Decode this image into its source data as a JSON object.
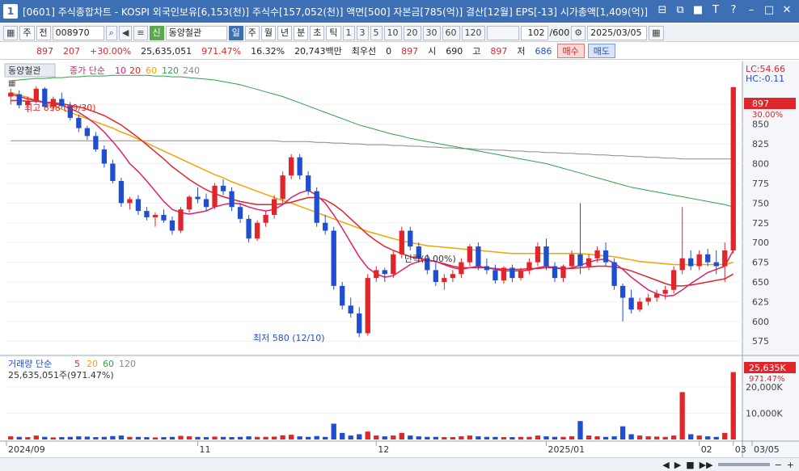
{
  "window": {
    "number": "1",
    "title": "[0601] 주식종합차트 - KOSPI 외국인보유[6,153(천)] 주식수[157,052(천)] 액면[500] 자본금[785(억)] 결산[12월] EPS[-13] 시가총액[1,409(억)]",
    "buttons": [
      "⊟",
      "⧉",
      "■",
      "T",
      "?",
      "–",
      "□",
      "✕"
    ]
  },
  "toolbar": {
    "mode": "주",
    "prev": "전",
    "code": "008970",
    "badge": "신",
    "name": "동양철관",
    "periods": [
      "일",
      "주",
      "월",
      "년",
      "분",
      "초",
      "틱"
    ],
    "intervals": [
      "1",
      "3",
      "5",
      "10",
      "20",
      "30",
      "60",
      "120"
    ],
    "count": "102",
    "total": "/600",
    "date": "2025/03/05"
  },
  "info": {
    "price": "897",
    "change": "207",
    "change_pct": "+30.00%",
    "volume": "25,635,051",
    "vol_ratio": "971.47%",
    "turnover": "16.32%",
    "amount": "20,743백만",
    "pref_label": "최우선",
    "pref_val": "0",
    "pref_price": "897",
    "open_label": "시",
    "open": "690",
    "high_label": "고",
    "high": "897",
    "low_label": "저",
    "low": "686",
    "buy": "매수",
    "sell": "매도"
  },
  "legend": {
    "stock": "동양철관",
    "ma_label": "종가 단순",
    "ma_periods": [
      "10",
      "20",
      "60",
      "120",
      "240"
    ],
    "ma_colors": [
      "#e01f6a",
      "#e0262b",
      "#f0a500",
      "#2ea24d",
      "#888888"
    ],
    "vol_label": "거래량 단순",
    "vol_periods": [
      "5",
      "20",
      "60",
      "120"
    ],
    "vol_value": "25,635,051주(971.47%)"
  },
  "annotations": {
    "high": "최고 898 (09/30)",
    "low": "최저 580 (12/10)",
    "mid": "단락(0.00%)",
    "lc": "LC:54.66",
    "hc": "HC:-0.11",
    "price_tag": "897",
    "pct_tag": "30.00%",
    "vol_tag": "25,635K",
    "vol_pct_tag": "971.47%"
  },
  "chart_data": {
    "type": "candlestick",
    "y_ticks": [
      "875",
      "850",
      "825",
      "800",
      "775",
      "750",
      "725",
      "700",
      "675",
      "650",
      "625",
      "600",
      "575"
    ],
    "vol_ticks": [
      "20,000K",
      "10,000K"
    ],
    "x_labels": [
      "2024/09",
      "11",
      "12",
      "2025/01",
      "02",
      "03",
      "03/05"
    ],
    "ylim": [
      565,
      905
    ],
    "candles": [
      [
        885,
        895,
        875,
        890
      ],
      [
        888,
        893,
        870,
        874
      ],
      [
        874,
        885,
        865,
        880
      ],
      [
        880,
        898,
        876,
        895
      ],
      [
        895,
        897,
        870,
        872
      ],
      [
        872,
        885,
        866,
        882
      ],
      [
        882,
        890,
        870,
        873
      ],
      [
        873,
        878,
        855,
        858
      ],
      [
        858,
        862,
        840,
        845
      ],
      [
        845,
        848,
        830,
        835
      ],
      [
        835,
        840,
        815,
        818
      ],
      [
        818,
        823,
        795,
        800
      ],
      [
        800,
        805,
        775,
        778
      ],
      [
        778,
        782,
        745,
        750
      ],
      [
        750,
        758,
        742,
        755
      ],
      [
        755,
        760,
        735,
        740
      ],
      [
        740,
        745,
        728,
        732
      ],
      [
        732,
        738,
        720,
        735
      ],
      [
        735,
        742,
        725,
        728
      ],
      [
        728,
        733,
        710,
        715
      ],
      [
        715,
        745,
        712,
        742
      ],
      [
        742,
        760,
        738,
        758
      ],
      [
        758,
        770,
        750,
        755
      ],
      [
        755,
        762,
        740,
        745
      ],
      [
        745,
        775,
        742,
        772
      ],
      [
        772,
        780,
        760,
        765
      ],
      [
        765,
        770,
        740,
        745
      ],
      [
        745,
        750,
        725,
        730
      ],
      [
        730,
        735,
        700,
        705
      ],
      [
        705,
        728,
        702,
        725
      ],
      [
        725,
        740,
        720,
        735
      ],
      [
        735,
        760,
        730,
        755
      ],
      [
        755,
        790,
        750,
        785
      ],
      [
        785,
        812,
        780,
        808
      ],
      [
        808,
        812,
        780,
        785
      ],
      [
        785,
        790,
        760,
        765
      ],
      [
        765,
        770,
        720,
        725
      ],
      [
        725,
        735,
        710,
        715
      ],
      [
        715,
        720,
        640,
        645
      ],
      [
        645,
        650,
        615,
        620
      ],
      [
        620,
        630,
        605,
        610
      ],
      [
        610,
        618,
        580,
        585
      ],
      [
        585,
        660,
        582,
        655
      ],
      [
        655,
        670,
        650,
        665
      ],
      [
        665,
        668,
        650,
        660
      ],
      [
        660,
        690,
        655,
        685
      ],
      [
        685,
        720,
        680,
        715
      ],
      [
        715,
        720,
        690,
        695
      ],
      [
        695,
        700,
        675,
        680
      ],
      [
        680,
        685,
        660,
        665
      ],
      [
        665,
        675,
        645,
        650
      ],
      [
        650,
        660,
        640,
        655
      ],
      [
        655,
        665,
        650,
        660
      ],
      [
        660,
        680,
        655,
        675
      ],
      [
        675,
        698,
        670,
        695
      ],
      [
        695,
        700,
        665,
        670
      ],
      [
        670,
        680,
        660,
        665
      ],
      [
        665,
        672,
        648,
        652
      ],
      [
        652,
        670,
        648,
        668
      ],
      [
        668,
        672,
        650,
        655
      ],
      [
        655,
        668,
        652,
        665
      ],
      [
        665,
        680,
        660,
        675
      ],
      [
        675,
        700,
        670,
        695
      ],
      [
        695,
        705,
        665,
        670
      ],
      [
        670,
        675,
        650,
        655
      ],
      [
        655,
        672,
        650,
        670
      ],
      [
        670,
        690,
        668,
        685
      ],
      [
        685,
        750,
        660,
        670
      ],
      [
        670,
        685,
        665,
        680
      ],
      [
        680,
        695,
        675,
        690
      ],
      [
        690,
        700,
        670,
        675
      ],
      [
        675,
        680,
        640,
        645
      ],
      [
        645,
        648,
        600,
        630
      ],
      [
        630,
        640,
        610,
        615
      ],
      [
        615,
        630,
        612,
        625
      ],
      [
        625,
        635,
        620,
        630
      ],
      [
        630,
        640,
        625,
        635
      ],
      [
        635,
        645,
        628,
        640
      ],
      [
        640,
        670,
        635,
        665
      ],
      [
        665,
        745,
        660,
        680
      ],
      [
        680,
        690,
        665,
        670
      ],
      [
        670,
        690,
        665,
        685
      ],
      [
        685,
        692,
        670,
        675
      ],
      [
        675,
        690,
        660,
        670
      ],
      [
        670,
        700,
        650,
        690
      ],
      [
        690,
        897,
        686,
        897
      ]
    ],
    "volumes": [
      1.2,
      1.0,
      0.9,
      1.5,
      1.0,
      0.8,
      0.9,
      1.0,
      1.2,
      1.1,
      0.9,
      1.0,
      1.3,
      1.5,
      1.0,
      1.0,
      0.9,
      0.8,
      0.9,
      1.0,
      1.4,
      1.2,
      1.0,
      0.9,
      1.1,
      1.0,
      0.9,
      1.0,
      1.2,
      1.0,
      1.0,
      1.1,
      1.6,
      1.8,
      1.2,
      1.0,
      1.3,
      1.0,
      6.0,
      2.5,
      1.5,
      2.0,
      3.0,
      1.5,
      1.2,
      1.5,
      2.5,
      1.5,
      1.2,
      1.0,
      1.0,
      0.9,
      0.9,
      1.2,
      1.5,
      1.2,
      1.0,
      1.0,
      0.9,
      0.9,
      1.0,
      1.0,
      1.5,
      1.2,
      1.0,
      1.0,
      1.2,
      7.0,
      1.5,
      1.2,
      1.0,
      1.2,
      5.0,
      2.0,
      1.5,
      1.2,
      1.1,
      1.0,
      1.5,
      18.0,
      2.0,
      1.5,
      1.2,
      1.0,
      2.5,
      25.6
    ],
    "ma10": [
      888,
      885,
      882,
      880,
      878,
      876,
      874,
      870,
      865,
      858,
      850,
      840,
      828,
      815,
      800,
      790,
      778,
      765,
      752,
      742,
      738,
      736,
      738,
      740,
      745,
      748,
      750,
      749,
      745,
      742,
      740,
      742,
      748,
      757,
      763,
      766,
      760,
      750,
      735,
      718,
      700,
      682,
      668,
      660,
      656,
      658,
      665,
      672,
      676,
      678,
      676,
      672,
      668,
      666,
      668,
      670,
      668,
      666,
      664,
      664,
      664,
      665,
      668,
      670,
      668,
      666,
      668,
      671,
      675,
      678,
      679,
      674,
      666,
      656,
      648,
      640,
      635,
      632,
      633,
      640,
      648,
      655,
      662,
      666,
      670,
      690
    ],
    "ma20": [
      880,
      880,
      879,
      879,
      878,
      877,
      876,
      874,
      872,
      869,
      865,
      861,
      855,
      849,
      841,
      833,
      824,
      815,
      806,
      796,
      788,
      780,
      773,
      767,
      762,
      758,
      755,
      752,
      750,
      748,
      748,
      748,
      749,
      751,
      754,
      757,
      757,
      754,
      748,
      740,
      730,
      720,
      710,
      702,
      695,
      690,
      686,
      682,
      680,
      678,
      676,
      673,
      670,
      668,
      668,
      668,
      668,
      667,
      666,
      666,
      666,
      667,
      667,
      668,
      668,
      667,
      667,
      668,
      669,
      670,
      670,
      669,
      667,
      664,
      660,
      656,
      652,
      648,
      645,
      645,
      646,
      648,
      650,
      652,
      654,
      660
    ],
    "ma60": [
      890,
      887,
      884,
      880,
      877,
      873,
      869,
      865,
      861,
      857,
      853,
      849,
      845,
      840,
      836,
      831,
      826,
      821,
      816,
      811,
      806,
      801,
      796,
      791,
      786,
      782,
      777,
      773,
      769,
      765,
      761,
      757,
      753,
      750,
      746,
      742,
      738,
      734,
      730,
      726,
      722,
      718,
      714,
      711,
      708,
      705,
      702,
      700,
      698,
      696,
      695,
      694,
      693,
      692,
      691,
      690,
      689,
      688,
      687,
      686,
      686,
      686,
      686,
      686,
      686,
      686,
      686,
      686,
      685,
      684,
      683,
      682,
      680,
      678,
      676,
      675,
      674,
      673,
      672,
      672,
      672,
      672,
      672,
      672,
      672,
      675
    ],
    "ma120": [
      905,
      906,
      907,
      908,
      908,
      909,
      909,
      910,
      910,
      911,
      911,
      911,
      912,
      912,
      912,
      912,
      912,
      911,
      911,
      910,
      910,
      909,
      908,
      907,
      906,
      904,
      902,
      900,
      897,
      894,
      891,
      888,
      885,
      881,
      877,
      873,
      869,
      865,
      861,
      857,
      853,
      849,
      846,
      843,
      840,
      837,
      835,
      832,
      830,
      828,
      826,
      824,
      822,
      820,
      818,
      816,
      814,
      812,
      810,
      808,
      806,
      804,
      802,
      800,
      797,
      794,
      791,
      788,
      785,
      782,
      779,
      776,
      773,
      770,
      768,
      766,
      764,
      762,
      760,
      758,
      756,
      754,
      752,
      750,
      748,
      745
    ],
    "ma240": [
      829,
      829,
      829,
      829,
      829,
      829,
      829,
      829,
      829,
      829,
      829,
      829,
      829,
      829,
      829,
      829,
      829,
      829,
      829,
      829,
      829,
      829,
      829,
      829,
      829,
      829,
      829,
      829,
      829,
      829,
      829,
      829,
      828,
      828,
      828,
      828,
      827,
      827,
      826,
      826,
      825,
      825,
      824,
      824,
      824,
      823,
      823,
      822,
      822,
      821,
      821,
      820,
      820,
      819,
      819,
      818,
      818,
      817,
      817,
      816,
      816,
      815,
      815,
      814,
      814,
      813,
      813,
      812,
      812,
      811,
      811,
      810,
      810,
      809,
      809,
      808,
      808,
      807,
      807,
      806,
      806,
      806,
      806,
      806,
      806,
      806
    ]
  }
}
